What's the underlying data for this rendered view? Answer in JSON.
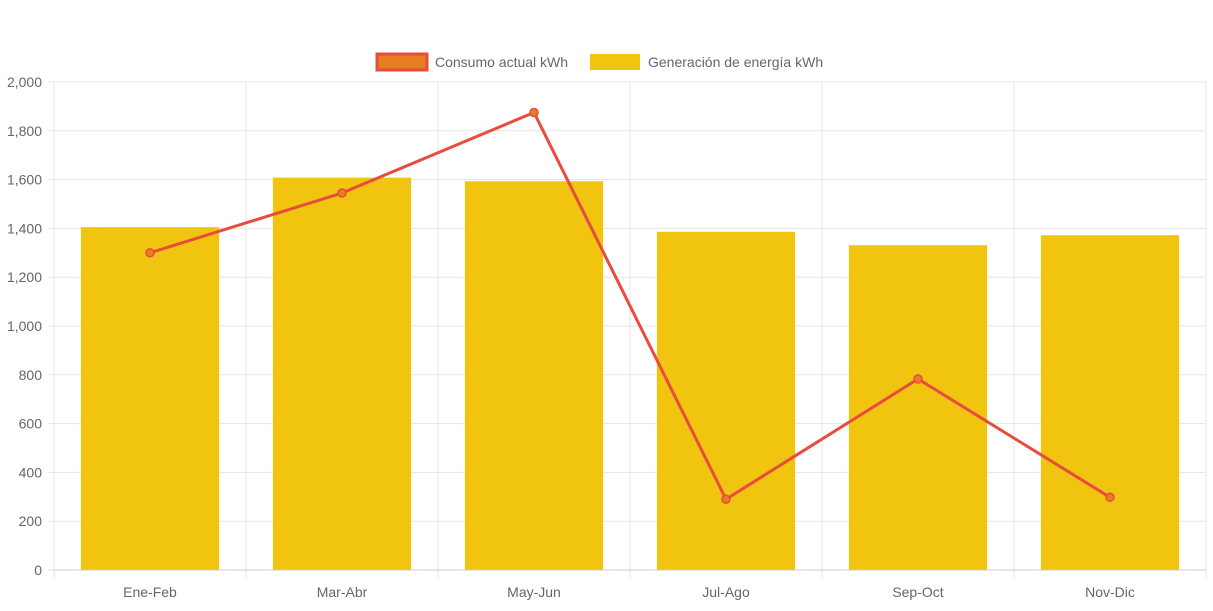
{
  "chart_data": {
    "type": "bar",
    "categories": [
      "Ene-Feb",
      "Mar-Abr",
      "May-Jun",
      "Jul-Ago",
      "Sep-Oct",
      "Nov-Dic"
    ],
    "series": [
      {
        "name": "Consumo actual kWh",
        "type": "line",
        "values": [
          1300,
          1545,
          1875,
          290,
          783,
          298
        ],
        "color": "#e74c3c",
        "fill": "#e67e22"
      },
      {
        "name": "Generación de energía kWh",
        "type": "bar",
        "values": [
          1405,
          1608,
          1593,
          1386,
          1331,
          1372
        ],
        "color": "#f1c40f"
      }
    ],
    "title": "",
    "xlabel": "",
    "ylabel": "",
    "ylim": [
      0,
      2000
    ],
    "yticks": [
      0,
      200,
      400,
      600,
      800,
      1000,
      1200,
      1400,
      1600,
      1800,
      2000
    ],
    "ytick_labels": [
      "0",
      "200",
      "400",
      "600",
      "800",
      "1,000",
      "1,200",
      "1,400",
      "1,600",
      "1,800",
      "2,000"
    ],
    "grid": true,
    "legend": "top-center"
  },
  "colors": {
    "grid": "#e5e5e5",
    "axis_text": "#666666"
  }
}
